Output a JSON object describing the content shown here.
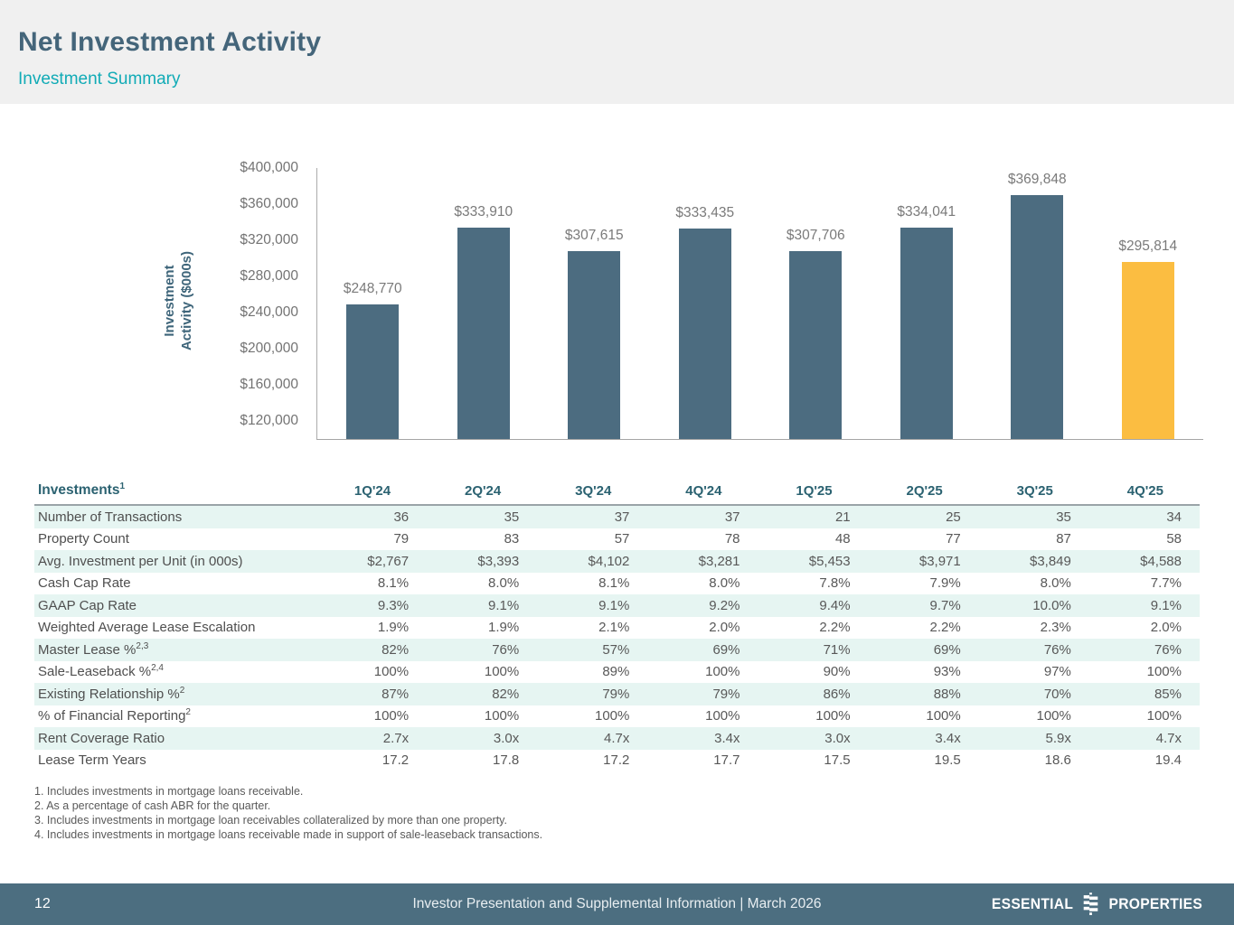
{
  "header": {
    "title": "Net Investment Activity",
    "subtitle": "Investment Summary"
  },
  "chart_data": {
    "type": "bar",
    "title": "",
    "ylabel": "Investment Activity ($000s)",
    "ylabel_lines": [
      "Investment",
      "Activity ($000s)"
    ],
    "categories": [
      "1Q'24",
      "2Q'24",
      "3Q'24",
      "4Q'24",
      "1Q'25",
      "2Q'25",
      "3Q'25",
      "4Q'25"
    ],
    "values": [
      248770,
      333910,
      307615,
      333435,
      307706,
      334041,
      369848,
      295814
    ],
    "bar_labels": [
      "$248,770",
      "$333,910",
      "$307,615",
      "$333,435",
      "$307,706",
      "$334,041",
      "$369,848",
      "$295,814"
    ],
    "ylim": [
      100000,
      400000
    ],
    "yticks": [
      {
        "label": "$400,000",
        "value": 400000
      },
      {
        "label": "$360,000",
        "value": 360000
      },
      {
        "label": "$320,000",
        "value": 320000
      },
      {
        "label": "$280,000",
        "value": 280000
      },
      {
        "label": "$240,000",
        "value": 240000
      },
      {
        "label": "$200,000",
        "value": 200000
      },
      {
        "label": "$160,000",
        "value": 160000
      },
      {
        "label": "$120,000",
        "value": 120000
      }
    ],
    "grid": false,
    "legend": "none",
    "colors": {
      "bar": "#4C6C80",
      "highlight": "#FBBD41"
    },
    "highlight_index": 7
  },
  "table": {
    "header": {
      "label": "Investments",
      "sup": "1",
      "columns": [
        "1Q'24",
        "2Q'24",
        "3Q'24",
        "4Q'24",
        "1Q'25",
        "2Q'25",
        "3Q'25",
        "4Q'25"
      ]
    },
    "rows": [
      {
        "label": "Number of Transactions",
        "sup": "",
        "values": [
          "36",
          "35",
          "37",
          "37",
          "21",
          "25",
          "35",
          "34"
        ]
      },
      {
        "label": "Property Count",
        "sup": "",
        "values": [
          "79",
          "83",
          "57",
          "78",
          "48",
          "77",
          "87",
          "58"
        ]
      },
      {
        "label": "Avg. Investment per Unit (in 000s)",
        "sup": "",
        "values": [
          "$2,767",
          "$3,393",
          "$4,102",
          "$3,281",
          "$5,453",
          "$3,971",
          "$3,849",
          "$4,588"
        ]
      },
      {
        "label": "Cash Cap Rate",
        "sup": "",
        "values": [
          "8.1%",
          "8.0%",
          "8.1%",
          "8.0%",
          "7.8%",
          "7.9%",
          "8.0%",
          "7.7%"
        ]
      },
      {
        "label": "GAAP Cap Rate",
        "sup": "",
        "values": [
          "9.3%",
          "9.1%",
          "9.1%",
          "9.2%",
          "9.4%",
          "9.7%",
          "10.0%",
          "9.1%"
        ]
      },
      {
        "label": "Weighted Average Lease Escalation",
        "sup": "",
        "values": [
          "1.9%",
          "1.9%",
          "2.1%",
          "2.0%",
          "2.2%",
          "2.2%",
          "2.3%",
          "2.0%"
        ]
      },
      {
        "label": "Master Lease %",
        "sup": "2,3",
        "values": [
          "82%",
          "76%",
          "57%",
          "69%",
          "71%",
          "69%",
          "76%",
          "76%"
        ]
      },
      {
        "label": "Sale-Leaseback %",
        "sup": "2,4",
        "values": [
          "100%",
          "100%",
          "89%",
          "100%",
          "90%",
          "93%",
          "97%",
          "100%"
        ]
      },
      {
        "label": "Existing Relationship %",
        "sup": "2",
        "values": [
          "87%",
          "82%",
          "79%",
          "79%",
          "86%",
          "88%",
          "70%",
          "85%"
        ]
      },
      {
        "label": "% of Financial Reporting",
        "sup": "2",
        "values": [
          "100%",
          "100%",
          "100%",
          "100%",
          "100%",
          "100%",
          "100%",
          "100%"
        ]
      },
      {
        "label": "Rent Coverage Ratio",
        "sup": "",
        "values": [
          "2.7x",
          "3.0x",
          "4.7x",
          "3.4x",
          "3.0x",
          "3.4x",
          "5.9x",
          "4.7x"
        ]
      },
      {
        "label": "Lease Term Years",
        "sup": "",
        "values": [
          "17.2",
          "17.8",
          "17.2",
          "17.7",
          "17.5",
          "19.5",
          "18.6",
          "19.4"
        ]
      }
    ]
  },
  "footnotes": [
    "1. Includes investments in mortgage loans receivable.",
    "2. As a percentage of cash ABR for the quarter.",
    "3. Includes investments in mortgage loan receivables collateralized by more than one property.",
    "4. Includes investments in mortgage loans receivable made in support of sale-leaseback transactions."
  ],
  "footer": {
    "page": "12",
    "caption": "Investor Presentation and Supplemental Information |  March 2026",
    "logo_left": "ESSENTIAL",
    "logo_right": "PROPERTIES"
  }
}
